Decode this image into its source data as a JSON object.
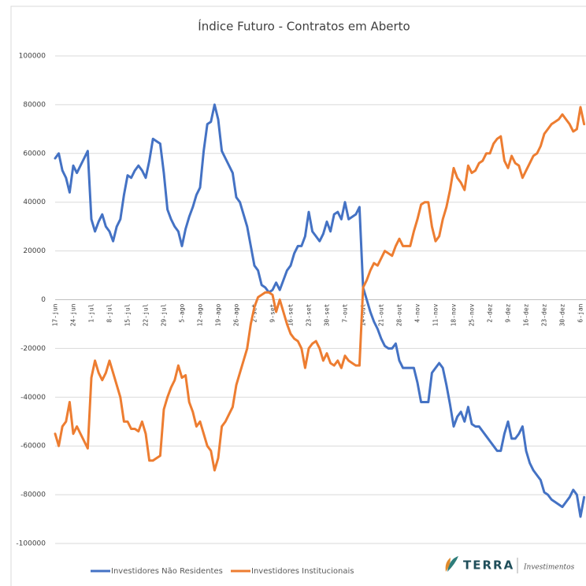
{
  "chart_data": {
    "type": "line",
    "title": "Índice Futuro - Contratos em Aberto",
    "categories": [
      "17-jun",
      null,
      null,
      null,
      null,
      "24-jun",
      null,
      null,
      null,
      null,
      "1-jul",
      null,
      null,
      null,
      null,
      "8-jul",
      null,
      null,
      null,
      null,
      "15-jul",
      null,
      null,
      null,
      null,
      "22-jul",
      null,
      null,
      null,
      null,
      "29-jul",
      null,
      null,
      null,
      null,
      "5-ago",
      null,
      null,
      null,
      null,
      "12-ago",
      null,
      null,
      null,
      null,
      "19-ago",
      null,
      null,
      null,
      null,
      "26-ago",
      null,
      null,
      null,
      null,
      "2-set",
      null,
      null,
      null,
      null,
      "9-set",
      null,
      null,
      null,
      null,
      "16-set",
      null,
      null,
      null,
      null,
      "23-set",
      null,
      null,
      null,
      null,
      "30-set",
      null,
      null,
      null,
      null,
      "7-out",
      null,
      null,
      null,
      null,
      "14-out",
      null,
      null,
      null,
      null,
      "21-out",
      null,
      null,
      null,
      null,
      "28-out",
      null,
      null,
      null,
      null,
      "4-nov",
      null,
      null,
      null,
      null,
      "11-nov",
      null,
      null,
      null,
      null,
      "18-nov",
      null,
      null,
      null,
      null,
      "25-nov",
      null,
      null,
      null,
      null,
      "2-dez",
      null,
      null,
      null,
      null,
      "9-dez",
      null,
      null,
      null,
      null,
      "16-dez",
      null,
      null,
      null,
      null,
      "23-dez",
      null,
      null,
      null,
      null,
      "30-dez",
      null,
      null,
      null,
      null,
      "6-jan",
      null
    ],
    "series": [
      {
        "name": "Investidores Não Residentes",
        "color": "#4472c4",
        "values": [
          58000,
          60000,
          53000,
          50000,
          44000,
          55000,
          52000,
          55000,
          58000,
          61000,
          33000,
          28000,
          32000,
          35000,
          30000,
          28000,
          24000,
          30000,
          33000,
          43000,
          51000,
          50000,
          53000,
          55000,
          53000,
          50000,
          57000,
          66000,
          65000,
          64000,
          52000,
          37000,
          33000,
          30000,
          28000,
          22000,
          29000,
          34000,
          38000,
          43000,
          46000,
          61000,
          72000,
          73000,
          80000,
          74000,
          61000,
          58000,
          55000,
          52000,
          42000,
          40000,
          35000,
          30000,
          22000,
          14000,
          12000,
          6000,
          5000,
          3000,
          4000,
          7000,
          4000,
          8000,
          12000,
          14000,
          19000,
          22000,
          22000,
          26000,
          36000,
          28000,
          26000,
          24000,
          27000,
          32000,
          28000,
          35000,
          36000,
          33000,
          40000,
          33000,
          34000,
          35000,
          38000,
          5000,
          0,
          -5000,
          -9000,
          -12000,
          -16000,
          -19000,
          -20000,
          -20000,
          -18000,
          -25000,
          -28000,
          -28000,
          -28000,
          -28000,
          -34000,
          -42000,
          -42000,
          -42000,
          -30000,
          -28000,
          -26000,
          -28000,
          -35000,
          -43000,
          -52000,
          -48000,
          -46000,
          -50000,
          -44000,
          -51000,
          -52000,
          -52000,
          -54000,
          -56000,
          -58000,
          -60000,
          -62000,
          -62000,
          -55000,
          -50000,
          -57000,
          -57000,
          -55000,
          -52000,
          -62000,
          -67000,
          -70000,
          -72000,
          -74000,
          -79000,
          -80000,
          -82000,
          -83000,
          -84000,
          -85000,
          -83000,
          -81000,
          -78000,
          -80000,
          -89000,
          -81000
        ]
      },
      {
        "name": "Investidores Institucionais",
        "color": "#ed7d31",
        "values": [
          -55000,
          -60000,
          -52000,
          -50000,
          -42000,
          -55000,
          -52000,
          -55000,
          -58000,
          -61000,
          -32000,
          -25000,
          -30000,
          -33000,
          -30000,
          -25000,
          -30000,
          -35000,
          -40000,
          -50000,
          -50000,
          -53000,
          -53000,
          -54000,
          -50000,
          -55000,
          -66000,
          -66000,
          -65000,
          -64000,
          -45000,
          -40000,
          -36000,
          -33000,
          -27000,
          -32000,
          -31000,
          -42000,
          -46000,
          -52000,
          -50000,
          -55000,
          -60000,
          -62000,
          -70000,
          -65000,
          -52000,
          -50000,
          -47000,
          -44000,
          -35000,
          -30000,
          -25000,
          -20000,
          -10000,
          -3000,
          1000,
          2000,
          3000,
          3000,
          2000,
          -5000,
          0,
          -5000,
          -10000,
          -14000,
          -16000,
          -17000,
          -20000,
          -28000,
          -20000,
          -18000,
          -17000,
          -20000,
          -25000,
          -22000,
          -26000,
          -27000,
          -25000,
          -28000,
          -23000,
          -25000,
          -26000,
          -27000,
          -27000,
          5000,
          8000,
          12000,
          15000,
          14000,
          17000,
          20000,
          19000,
          18000,
          22000,
          25000,
          22000,
          22000,
          22000,
          28000,
          33000,
          39000,
          40000,
          40000,
          30000,
          24000,
          26000,
          33000,
          38000,
          45000,
          54000,
          50000,
          48000,
          45000,
          55000,
          52000,
          53000,
          56000,
          57000,
          60000,
          60000,
          64000,
          66000,
          67000,
          57000,
          54000,
          59000,
          56000,
          55000,
          50000,
          53000,
          56000,
          59000,
          60000,
          63000,
          68000,
          70000,
          72000,
          73000,
          74000,
          76000,
          74000,
          72000,
          69000,
          70000,
          79000,
          72000
        ]
      }
    ],
    "ylim": [
      -100000,
      100000
    ],
    "yticks": [
      100000,
      80000,
      60000,
      40000,
      20000,
      0,
      -20000,
      -40000,
      -60000,
      -80000,
      -100000
    ],
    "grid": true,
    "legend": "bottom",
    "logo": {
      "name": "TERRA",
      "tagline": "Investimentos"
    }
  }
}
